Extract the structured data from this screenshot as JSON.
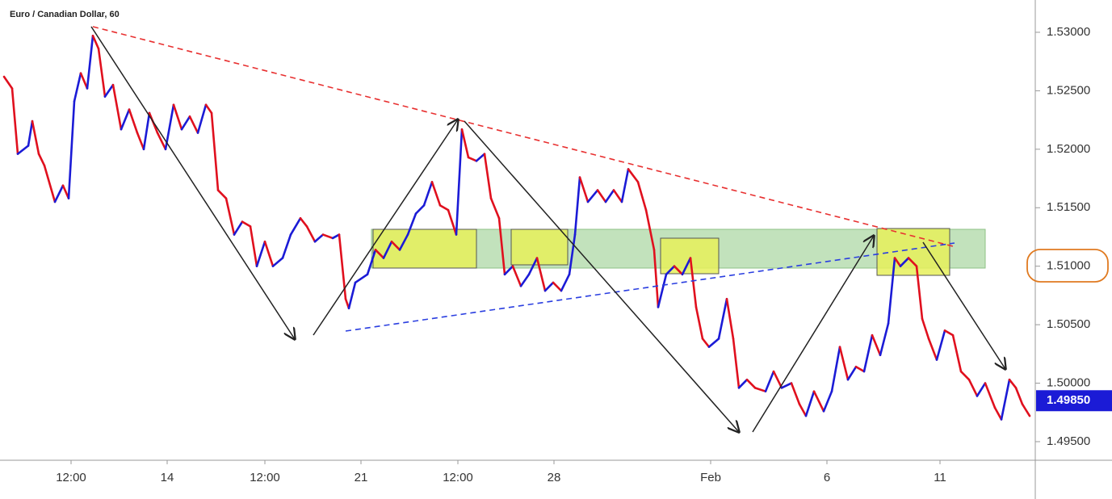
{
  "chart_data": {
    "type": "line",
    "title": "Euro / Canadian Dollar, 60",
    "x": [
      0,
      5,
      8.5,
      15,
      17.5,
      21.5,
      25,
      31.5,
      36.5,
      40,
      43.5,
      47.5,
      51.5,
      55,
      58.5,
      62.5,
      67.5,
      72.5,
      77.5,
      82.5,
      86.5,
      90,
      95,
      100,
      105,
      110,
      115,
      120,
      125,
      128.5,
      132.5,
      137.5,
      142.5,
      147.5,
      152.5,
      156.5,
      161.5,
      166.5,
      172.5,
      177.5,
      183.5,
      187.5,
      192.5,
      197.5,
      203.5,
      207.5,
      211.5,
      213.5,
      217.5,
      225,
      230,
      235,
      240,
      245,
      250,
      255,
      260,
      265,
      270,
      275,
      280,
      283.5,
      287.5,
      292.5,
      297.5,
      301.5,
      306.5,
      310,
      315,
      320,
      325,
      330,
      335,
      340,
      345,
      350,
      353.5,
      356.5,
      361.5,
      367.5,
      372.5,
      377.5,
      382.5,
      386.5,
      392.5,
      397.5,
      402.5,
      405,
      410,
      415,
      420,
      425,
      428.5,
      432.5,
      436.5,
      442.5,
      447.5,
      451.5,
      455,
      460,
      465,
      471.5,
      476.5,
      481.5,
      487.5,
      492.5,
      496.5,
      501.5,
      507.5,
      512.5,
      517.5,
      522.5,
      527.5,
      532.5,
      537.5,
      542.5,
      547.5,
      551.5,
      555,
      560,
      565,
      568.5,
      572.5,
      577.5,
      582.5,
      587.5,
      592.5,
      597.5,
      602.5,
      607.5,
      613.5,
      617.5,
      622.5,
      626.5,
      630.5,
      635
    ],
    "values": [
      1.5262,
      1.5252,
      1.5196,
      1.5203,
      1.5224,
      1.5196,
      1.5186,
      1.5155,
      1.5169,
      1.5158,
      1.5241,
      1.5265,
      1.5252,
      1.5297,
      1.5286,
      1.5245,
      1.5255,
      1.5217,
      1.5234,
      1.5214,
      1.52,
      1.5231,
      1.5214,
      1.52,
      1.5238,
      1.5217,
      1.5228,
      1.5214,
      1.5238,
      1.5231,
      1.5165,
      1.5158,
      1.5127,
      1.5138,
      1.5134,
      1.51,
      1.5121,
      1.51,
      1.5107,
      1.5127,
      1.5141,
      1.5134,
      1.5121,
      1.5127,
      1.5124,
      1.5127,
      1.5072,
      1.5064,
      1.5086,
      1.5093,
      1.5114,
      1.5107,
      1.5121,
      1.5114,
      1.5127,
      1.5145,
      1.5152,
      1.5172,
      1.5152,
      1.5148,
      1.5127,
      1.5217,
      1.5193,
      1.519,
      1.5196,
      1.5158,
      1.5141,
      1.5093,
      1.51,
      1.5083,
      1.5093,
      1.5107,
      1.5079,
      1.5086,
      1.5079,
      1.5093,
      1.5127,
      1.5176,
      1.5155,
      1.5165,
      1.5155,
      1.5165,
      1.5155,
      1.5183,
      1.5172,
      1.5148,
      1.5114,
      1.5065,
      1.5093,
      1.51,
      1.5093,
      1.5107,
      1.5065,
      1.5038,
      1.5031,
      1.5038,
      1.5072,
      1.5038,
      1.4996,
      1.5003,
      1.4996,
      1.4993,
      1.501,
      1.4996,
      1.5,
      1.4982,
      1.4972,
      1.4993,
      1.4976,
      1.4993,
      1.5031,
      1.5003,
      1.5014,
      1.501,
      1.5041,
      1.5024,
      1.5051,
      1.5107,
      1.51,
      1.5107,
      1.51,
      1.5055,
      1.5038,
      1.502,
      1.5045,
      1.5041,
      1.501,
      1.5003,
      1.4989,
      1.5,
      1.4979,
      1.4969,
      1.5003,
      1.4996,
      1.4982,
      1.4972
    ],
    "up_color": "#1b1bd6",
    "down_color": "#e0101e",
    "xlim": [
      0,
      638.5
    ],
    "xticks": [
      {
        "value": 41.5,
        "label": "12:00"
      },
      {
        "value": 101,
        "label": "14"
      },
      {
        "value": 161.5,
        "label": "12:00"
      },
      {
        "value": 221,
        "label": "21"
      },
      {
        "value": 281,
        "label": "12:00"
      },
      {
        "value": 340.5,
        "label": "28"
      },
      {
        "value": 437.5,
        "label": "Feb"
      },
      {
        "value": 509.5,
        "label": "6"
      },
      {
        "value": 579.5,
        "label": "11"
      }
    ],
    "ylim": [
      1.49341,
      1.53276
    ],
    "yticks": [
      {
        "value": 1.495,
        "label": "1.49500"
      },
      {
        "value": 1.5,
        "label": "1.50000"
      },
      {
        "value": 1.505,
        "label": "1.50500"
      },
      {
        "value": 1.51,
        "label": "1.51000"
      },
      {
        "value": 1.515,
        "label": "1.51500"
      },
      {
        "value": 1.52,
        "label": "1.52000"
      },
      {
        "value": 1.525,
        "label": "1.52500"
      },
      {
        "value": 1.53,
        "label": "1.53000"
      }
    ],
    "current_price": {
      "value": 1.4985,
      "label": "1.49850"
    }
  }
}
